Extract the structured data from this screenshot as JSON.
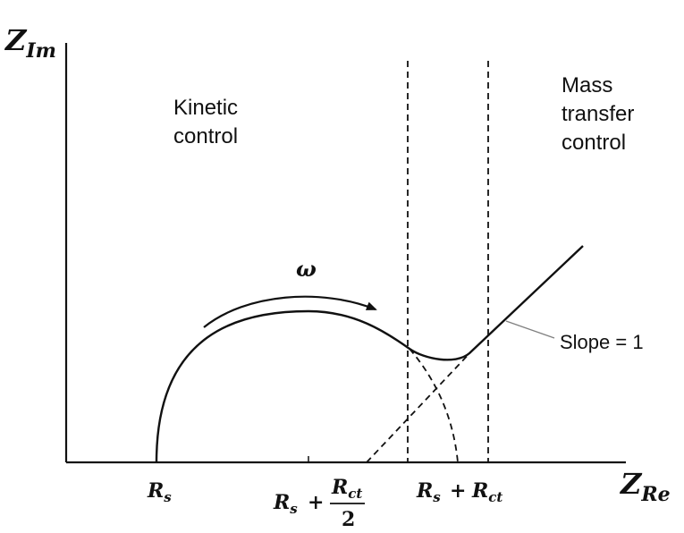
{
  "axes": {
    "y_label_main": "Z",
    "y_label_sub": "Im",
    "x_label_main": "Z",
    "x_label_sub": "Re"
  },
  "regions": {
    "kinetic_line1": "Kinetic",
    "kinetic_line2": "control",
    "mass_line1": "Mass",
    "mass_line2": "transfer",
    "mass_line3": "control"
  },
  "annotations": {
    "omega": "ω",
    "slope": "Slope = 1"
  },
  "ticks": {
    "rs_main": "R",
    "rs_sub": "s",
    "mid_rs_main": "R",
    "mid_rs_sub": "s",
    "mid_plus": "+",
    "mid_rct_main": "R",
    "mid_rct_sub": "ct",
    "mid_denominator": "2",
    "sum_rs_main": "R",
    "sum_rs_sub": "s",
    "sum_plus": "+",
    "sum_rct_main": "R",
    "sum_rct_sub": "ct"
  },
  "colors": {
    "ink": "#111111",
    "leader": "#808080"
  }
}
